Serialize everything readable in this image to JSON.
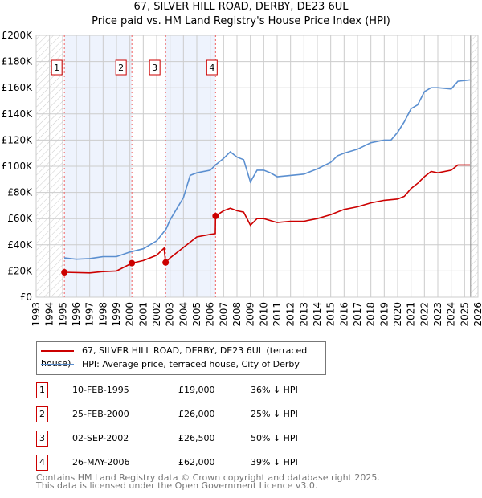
{
  "chart_data": {
    "type": "line",
    "title": "67, SILVER HILL ROAD, DERBY, DE23 6UL",
    "subtitle": "Price paid vs. HM Land Registry's House Price Index (HPI)",
    "xlim": [
      1993,
      2026
    ],
    "ylim": [
      0,
      200000
    ],
    "grid": true,
    "y_ticks": [
      "£0",
      "£20K",
      "£40K",
      "£60K",
      "£80K",
      "£100K",
      "£120K",
      "£140K",
      "£160K",
      "£180K",
      "£200K"
    ],
    "x_ticks": [
      "1993",
      "1994",
      "1995",
      "1996",
      "1997",
      "1998",
      "1999",
      "2000",
      "2001",
      "2002",
      "2003",
      "2004",
      "2005",
      "2006",
      "2007",
      "2008",
      "2009",
      "2010",
      "2011",
      "2012",
      "2013",
      "2014",
      "2015",
      "2016",
      "2017",
      "2018",
      "2019",
      "2020",
      "2021",
      "2022",
      "2023",
      "2024",
      "2025",
      "2026"
    ],
    "series": [
      {
        "name": "67, SILVER HILL ROAD, DERBY, DE23 6UL (terraced house)",
        "color": "#cc0000",
        "x": [
          1995.1,
          1997,
          1998,
          1999,
          2000.15,
          2001,
          2002,
          2002.55,
          2002.67,
          2003,
          2004,
          2005,
          2006,
          2006.38,
          2006.4,
          2007,
          2007.5,
          2008,
          2008.5,
          2009,
          2009.5,
          2010,
          2011,
          2012,
          2013,
          2014,
          2015,
          2016,
          2017,
          2018,
          2019,
          2020,
          2020.5,
          2021,
          2021.5,
          2022,
          2022.5,
          2023,
          2024,
          2024.5,
          2025.4
        ],
        "y": [
          19000,
          18500,
          19500,
          20000,
          26000,
          28000,
          32000,
          37500,
          26500,
          30000,
          38000,
          46000,
          48000,
          48500,
          62000,
          66000,
          68000,
          66000,
          65000,
          55000,
          60000,
          60000,
          57000,
          58000,
          58000,
          60000,
          63000,
          67000,
          69000,
          72000,
          74000,
          75000,
          77000,
          83000,
          87000,
          92000,
          96000,
          95000,
          97000,
          101000,
          101000
        ]
      },
      {
        "name": "HPI: Average price, terraced house, City of Derby",
        "color": "#5b8fd0",
        "x": [
          1995.1,
          1996,
          1997,
          1998,
          1999,
          2000,
          2001,
          2002,
          2002.7,
          2003,
          2004,
          2004.5,
          2005,
          2006,
          2006.4,
          2007,
          2007.5,
          2008,
          2008.5,
          2009,
          2009.5,
          2010,
          2010.5,
          2011,
          2012,
          2013,
          2014,
          2015,
          2015.5,
          2016,
          2017,
          2018,
          2019,
          2019.5,
          2020,
          2020.5,
          2021,
          2021.5,
          2022,
          2022.5,
          2023,
          2024,
          2024.5,
          2025.4
        ],
        "y": [
          30000,
          29000,
          29500,
          31000,
          31000,
          34500,
          37000,
          43000,
          52000,
          59000,
          76000,
          93000,
          95000,
          97000,
          101000,
          106000,
          111000,
          107000,
          105000,
          88000,
          97000,
          97000,
          95000,
          92000,
          93000,
          94000,
          98000,
          103000,
          108000,
          110000,
          113000,
          118000,
          120000,
          120000,
          126000,
          134000,
          144000,
          147000,
          157000,
          160000,
          160000,
          159000,
          165000,
          166000
        ]
      }
    ],
    "sales": [
      {
        "label": "1",
        "x": 1995.11,
        "price": 19000,
        "date": "10-FEB-1995",
        "price_text": "£19,000",
        "hpi": "36% ↓ HPI"
      },
      {
        "label": "2",
        "x": 2000.15,
        "price": 26000,
        "date": "25-FEB-2000",
        "price_text": "£26,000",
        "hpi": "25% ↓ HPI"
      },
      {
        "label": "3",
        "x": 2002.67,
        "price": 26500,
        "date": "02-SEP-2002",
        "price_text": "£26,500",
        "hpi": "50% ↓ HPI"
      },
      {
        "label": "4",
        "x": 2006.4,
        "price": 62000,
        "date": "26-MAY-2006",
        "price_text": "£62,000",
        "hpi": "39% ↓ HPI"
      }
    ],
    "data_end": 2025.45,
    "legend_position": "below"
  },
  "footer": {
    "line1": "Contains HM Land Registry data © Crown copyright and database right 2025.",
    "line2": "This data is licensed under the Open Government Licence v3.0."
  }
}
